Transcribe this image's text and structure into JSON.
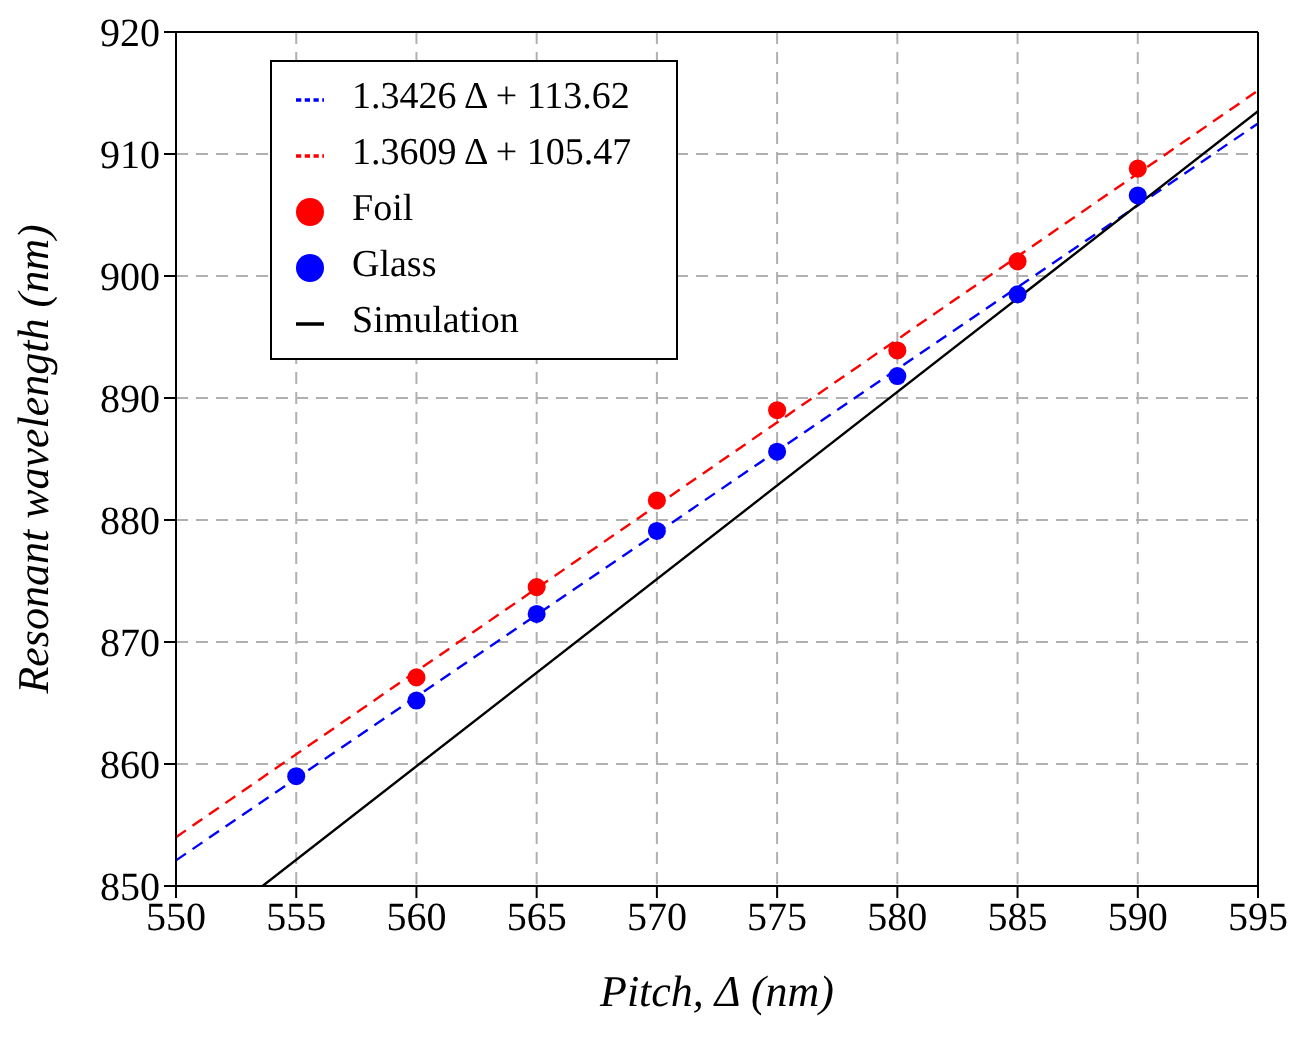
{
  "chart_data": {
    "type": "scatter",
    "xlabel": "Pitch, Δ (nm)",
    "ylabel": "Resonant wavelength (nm)",
    "xlim": [
      550,
      595
    ],
    "xticks": [
      550,
      555,
      560,
      565,
      570,
      575,
      580,
      585,
      590,
      595
    ],
    "ylim": [
      850,
      920
    ],
    "yticks": [
      850,
      860,
      870,
      880,
      890,
      900,
      910,
      920
    ],
    "grid": true,
    "legend": "top left",
    "series": [
      {
        "name": "Glass",
        "type": "scatter",
        "marker": "circle",
        "color": "#0000ff",
        "x": [
          555,
          560,
          565,
          570,
          575,
          580,
          585,
          590
        ],
        "values": [
          859,
          865.2,
          872.3,
          879.1,
          885.6,
          891.8,
          898.5,
          906.6
        ]
      },
      {
        "name": "1.3426 Δ + 113.62",
        "type": "line",
        "line_style": "dashed",
        "color": "#0000ff",
        "x": [
          550,
          595
        ],
        "values": [
          852.1,
          912.5
        ]
      },
      {
        "name": "Foil",
        "marker": "circle",
        "color": "#ff0000",
        "x": [
          560,
          565,
          570,
          575,
          580,
          585,
          590
        ],
        "values": [
          867.1,
          874.5,
          881.6,
          889,
          893.9,
          901.2,
          908.8
        ]
      },
      {
        "name": "1.3609 Δ + 105.47",
        "type": "line",
        "line_style": "dashed",
        "color": "#ff0000",
        "x": [
          550,
          595
        ],
        "values": [
          854.0,
          915.2
        ]
      },
      {
        "name": "Simulation",
        "type": "line",
        "line_style": "solid",
        "color": "#000000",
        "x": [
          553.6,
          595
        ],
        "values": [
          850,
          913.5
        ]
      }
    ]
  }
}
